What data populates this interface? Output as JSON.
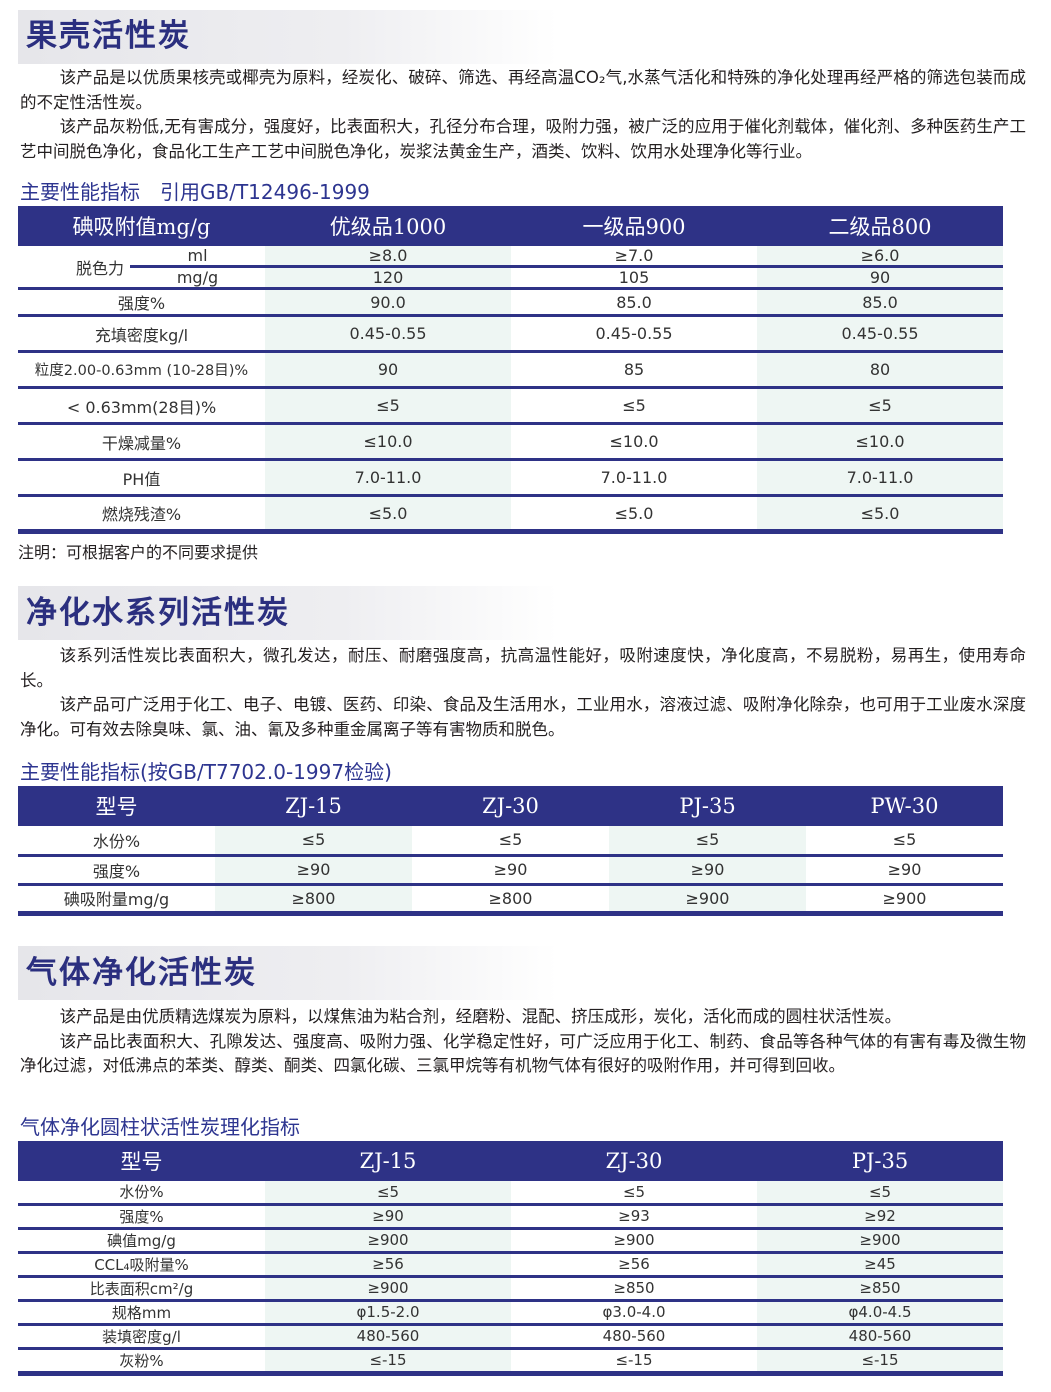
{
  "section1": {
    "title": "果壳活性炭",
    "paragraphs": [
      "该产品是以优质果核壳或椰壳为原料，经炭化、破碎、筛选、再经高温CO₂气,水蒸气活化和特殊的净化处理再经严格的筛选包装而成的不定性活性炭。",
      "该产品灰粉低,无有害成分，强度好，比表面积大，孔径分布合理，吸附力强，被广泛的应用于催化剂载体，催化剂、多种医药生产工艺中间脱色净化，食品化工生产工艺中间脱色净化，炭浆法黄金生产，酒类、饮料、饮用水处理净化等行业。"
    ],
    "subtitle": "主要性能指标　引用GB/T12496-1999",
    "table": {
      "headers": [
        "碘吸附值mg/g",
        "优级品1000",
        "一级品900",
        "二级品800"
      ],
      "decolor_label": "脱色力",
      "decolor_rows": [
        {
          "unit": "ml",
          "values": [
            "≥8.0",
            "≥7.0",
            "≥6.0"
          ]
        },
        {
          "unit": "mg/g",
          "values": [
            "120",
            "105",
            "90"
          ]
        }
      ],
      "rows": [
        {
          "label": "强度%",
          "values": [
            "90.0",
            "85.0",
            "85.0"
          ]
        },
        {
          "label": "充填密度kg/l",
          "values": [
            "0.45-0.55",
            "0.45-0.55",
            "0.45-0.55"
          ]
        },
        {
          "label": "粒度2.00-0.63mm (10-28目)%",
          "values": [
            "90",
            "85",
            "80"
          ]
        },
        {
          "label": "< 0.63mm(28目)%",
          "values": [
            "≤5",
            "≤5",
            "≤5"
          ]
        },
        {
          "label": "干燥减量%",
          "values": [
            "≤10.0",
            "≤10.0",
            "≤10.0"
          ]
        },
        {
          "label": "PH值",
          "values": [
            "7.0-11.0",
            "7.0-11.0",
            "7.0-11.0"
          ]
        },
        {
          "label": "燃烧残渣%",
          "values": [
            "≤5.0",
            "≤5.0",
            "≤5.0"
          ]
        }
      ]
    },
    "note": "注明：可根据客户的不同要求提供"
  },
  "section2": {
    "title": "净化水系列活性炭",
    "paragraphs": [
      "该系列活性炭比表面积大，微孔发达，耐压、耐磨强度高，抗高温性能好，吸附速度快，净化度高，不易脱粉，易再生，使用寿命长。",
      "该产品可广泛用于化工、电子、电镀、医药、印染、食品及生活用水，工业用水，溶液过滤、吸附净化除杂，也可用于工业废水深度净化。可有效去除臭味、氯、油、氰及多种重金属离子等有害物质和脱色。"
    ],
    "subtitle": "主要性能指标(按GB/T7702.0-1997检验)",
    "table": {
      "headers": [
        "型号",
        "ZJ-15",
        "ZJ-30",
        "PJ-35",
        "PW-30"
      ],
      "rows": [
        {
          "label": "水份%",
          "values": [
            "≤5",
            "≤5",
            "≤5",
            "≤5"
          ]
        },
        {
          "label": "强度%",
          "values": [
            "≥90",
            "≥90",
            "≥90",
            "≥90"
          ]
        },
        {
          "label": "碘吸附量mg/g",
          "values": [
            "≥800",
            "≥800",
            "≥900",
            "≥900"
          ]
        }
      ]
    }
  },
  "section3": {
    "title": "气体净化活性炭",
    "paragraphs": [
      "该产品是由优质精选煤炭为原料，以煤焦油为粘合剂，经磨粉、混配、挤压成形，炭化，活化而成的圆柱状活性炭。",
      "该产品比表面积大、孔隙发达、强度高、吸附力强、化学稳定性好，可广泛应用于化工、制药、食品等各种气体的有害有毒及微生物净化过滤，对低沸点的苯类、醇类、酮类、四氯化碳、三氯甲烷等有机物气体有很好的吸附作用，并可得到回收。"
    ],
    "subtitle": "气体净化圆柱状活性炭理化指标",
    "table": {
      "headers": [
        "型号",
        "ZJ-15",
        "ZJ-30",
        "PJ-35"
      ],
      "rows": [
        {
          "label": "水份%",
          "values": [
            "≤5",
            "≤5",
            "≤5"
          ]
        },
        {
          "label": "强度%",
          "values": [
            "≥90",
            "≥93",
            "≥92"
          ]
        },
        {
          "label": "碘值mg/g",
          "values": [
            "≥900",
            "≥900",
            "≥900"
          ]
        },
        {
          "label": "CCL₄吸附量%",
          "values": [
            "≥56",
            "≥56",
            "≥45"
          ]
        },
        {
          "label": "比表面积cm²/g",
          "values": [
            "≥900",
            "≥850",
            "≥850"
          ]
        },
        {
          "label": "规格mm",
          "values": [
            "φ1.5-2.0",
            "φ3.0-4.0",
            "φ4.0-4.5"
          ]
        },
        {
          "label": "装填密度g/l",
          "values": [
            "480-560",
            "480-560",
            "480-560"
          ]
        },
        {
          "label": "灰粉%",
          "values": [
            "≤-15",
            "≤-15",
            "≤-15"
          ]
        }
      ]
    }
  },
  "colors": {
    "navy": "#2e3286",
    "title": "#2b2f7f",
    "tint": "#eef6f3"
  }
}
